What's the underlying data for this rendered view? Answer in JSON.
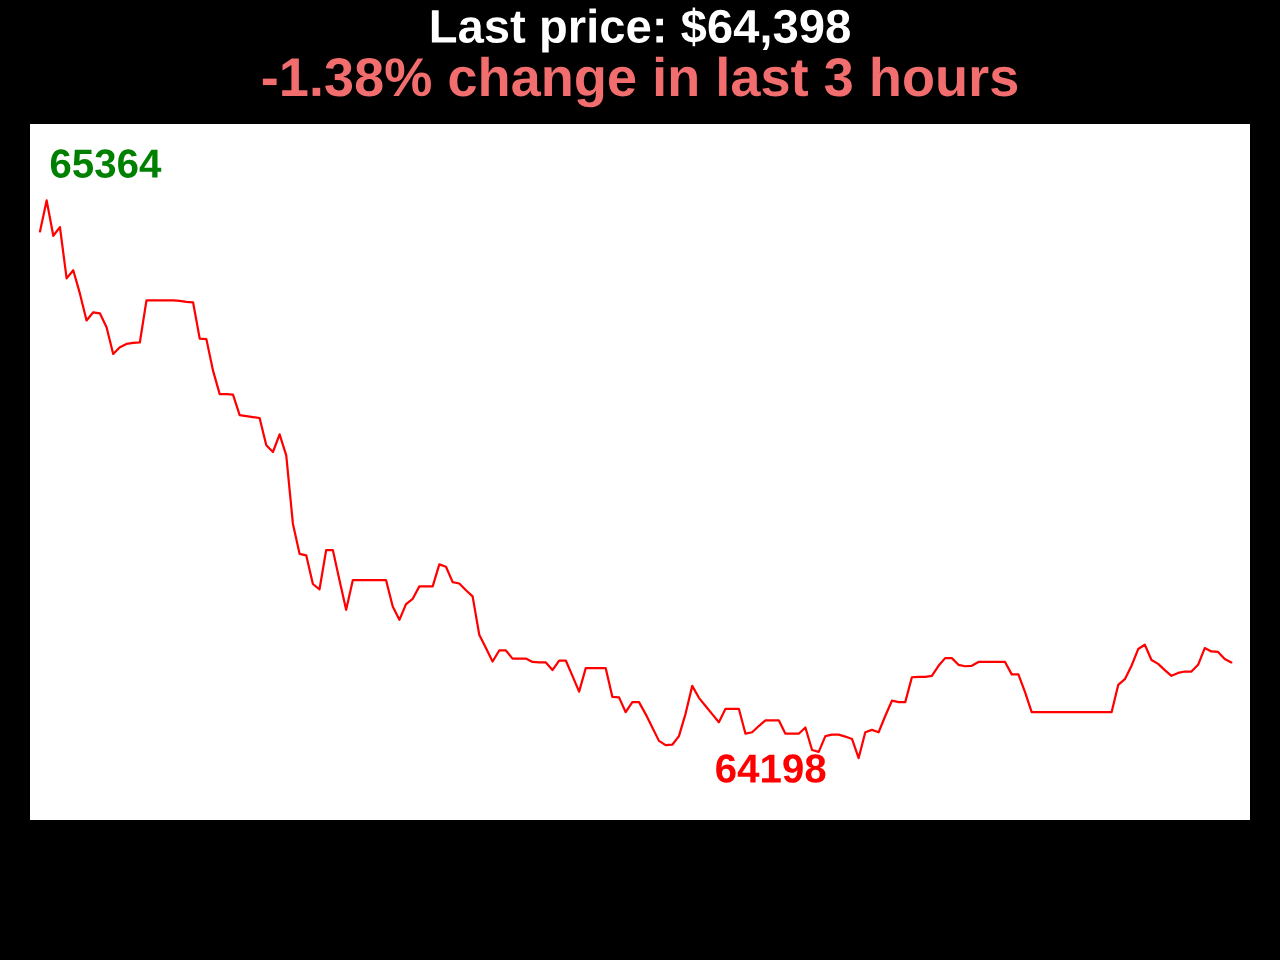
{
  "chart_data": {
    "type": "line",
    "title": "Last price: $64,398",
    "subtitle": "-1.38% change in last 3 hours",
    "categories": [
      null,
      null,
      null,
      null,
      null,
      null,
      null,
      null,
      null,
      null,
      null,
      null,
      null,
      null,
      null,
      null,
      null,
      null,
      null,
      null,
      null,
      null,
      null,
      null,
      null,
      null,
      null,
      null,
      null,
      null,
      null,
      null,
      null,
      null,
      null,
      null,
      null,
      null,
      null,
      null,
      null,
      null,
      null,
      null,
      null,
      null,
      null,
      null,
      null,
      null,
      null,
      null,
      null,
      null,
      null,
      null,
      null,
      null,
      null,
      null,
      null,
      null,
      null,
      null,
      null,
      null,
      null,
      null,
      null,
      null,
      null,
      null,
      null,
      null,
      null,
      null,
      null,
      null,
      null,
      null,
      null,
      null,
      null,
      null,
      null,
      null,
      null,
      null,
      null,
      null,
      null,
      null,
      null,
      null,
      null,
      null,
      null,
      null,
      null,
      null,
      null,
      null,
      null,
      null,
      null,
      null,
      null,
      null,
      null,
      null,
      null,
      null,
      null,
      null,
      null,
      null,
      null,
      null,
      null,
      null,
      null,
      null,
      null,
      null,
      null,
      null,
      null,
      null,
      null,
      null,
      null,
      null,
      null,
      null,
      null,
      null,
      null,
      null,
      null,
      null,
      null,
      null,
      null,
      null,
      null,
      null,
      null,
      null,
      null,
      null,
      null,
      null,
      null,
      null,
      null,
      null,
      null,
      null,
      null,
      null,
      null,
      null,
      null,
      null,
      null,
      null,
      null,
      null,
      null,
      null,
      null,
      null,
      null,
      null,
      null,
      null,
      null,
      null,
      null,
      null
    ],
    "series": [
      {
        "color": "#ff0000",
        "values": [
          65299,
          65364,
          65290,
          65308,
          65201,
          65218,
          65169,
          65113,
          65130,
          65128,
          65099,
          65043,
          65057,
          65064,
          65066,
          65067,
          65155,
          65155,
          65155,
          65155,
          65155,
          65154,
          65152,
          65151,
          65075,
          65074,
          65008,
          64959,
          64959,
          64958,
          64915,
          64913,
          64911,
          64909,
          64852,
          64838,
          64875,
          64831,
          64688,
          64625,
          64622,
          64562,
          64551,
          64633,
          64633,
          64570,
          64508,
          64570,
          64570,
          64570,
          64570,
          64570,
          64570,
          64515,
          64487,
          64520,
          64531,
          64557,
          64557,
          64557,
          64603,
          64598,
          64566,
          64563,
          64549,
          64536,
          64456,
          64428,
          64400,
          64423,
          64423,
          64406,
          64406,
          64406,
          64399,
          64398,
          64398,
          64382,
          64402,
          64402,
          64370,
          64337,
          64386,
          64386,
          64386,
          64386,
          64326,
          64325,
          64294,
          64315,
          64315,
          64290,
          64262,
          64234,
          64225,
          64226,
          64244,
          64291,
          64349,
          64324,
          64307,
          64290,
          64273,
          64301,
          64301,
          64301,
          64249,
          64252,
          64265,
          64277,
          64277,
          64277,
          64249,
          64249,
          64249,
          64262,
          64215,
          64211,
          64244,
          64247,
          64247,
          64243,
          64238,
          64198,
          64252,
          64257,
          64252,
          64286,
          64318,
          64315,
          64315,
          64367,
          64368,
          64368,
          64370,
          64391,
          64407,
          64407,
          64393,
          64390,
          64391,
          64399,
          64399,
          64399,
          64399,
          64399,
          64373,
          64373,
          64336,
          64294,
          64294,
          64294,
          64294,
          64294,
          64294,
          64294,
          64294,
          64294,
          64294,
          64294,
          64294,
          64294,
          64351,
          64363,
          64391,
          64426,
          64435,
          64403,
          64395,
          64382,
          64370,
          64376,
          64379,
          64379,
          64393,
          64428,
          64421,
          64420,
          64405,
          64398
        ],
        "value_labels": [
          null,
          "65364",
          null,
          null,
          null,
          null,
          null,
          null,
          null,
          null,
          null,
          null,
          null,
          null,
          null,
          null,
          null,
          null,
          null,
          null,
          null,
          null,
          null,
          null,
          null,
          null,
          null,
          null,
          null,
          null,
          null,
          null,
          null,
          null,
          null,
          null,
          null,
          null,
          null,
          null,
          null,
          null,
          null,
          null,
          null,
          null,
          null,
          null,
          null,
          null,
          null,
          null,
          null,
          null,
          null,
          null,
          null,
          null,
          null,
          null,
          null,
          null,
          null,
          null,
          null,
          null,
          null,
          null,
          null,
          null,
          null,
          null,
          null,
          null,
          null,
          null,
          null,
          null,
          null,
          null,
          null,
          null,
          null,
          null,
          null,
          null,
          null,
          null,
          null,
          null,
          null,
          null,
          null,
          null,
          null,
          null,
          null,
          null,
          null,
          null,
          null,
          null,
          null,
          null,
          null,
          null,
          null,
          null,
          null,
          null,
          null,
          null,
          null,
          null,
          null,
          null,
          null,
          null,
          null,
          null,
          null,
          null,
          null,
          "64198",
          null,
          null,
          null,
          null,
          null,
          null,
          null,
          null,
          null,
          null,
          null,
          null,
          null,
          null,
          null,
          null,
          null,
          null,
          null,
          null,
          null,
          null,
          null,
          null,
          null,
          null,
          null,
          null,
          null,
          null,
          null,
          null,
          null,
          null,
          null,
          null,
          null,
          null,
          null,
          null,
          null,
          null,
          null,
          null,
          null,
          null,
          null,
          null,
          null,
          null,
          null,
          null,
          null,
          null,
          null,
          null
        ]
      }
    ]
  }
}
